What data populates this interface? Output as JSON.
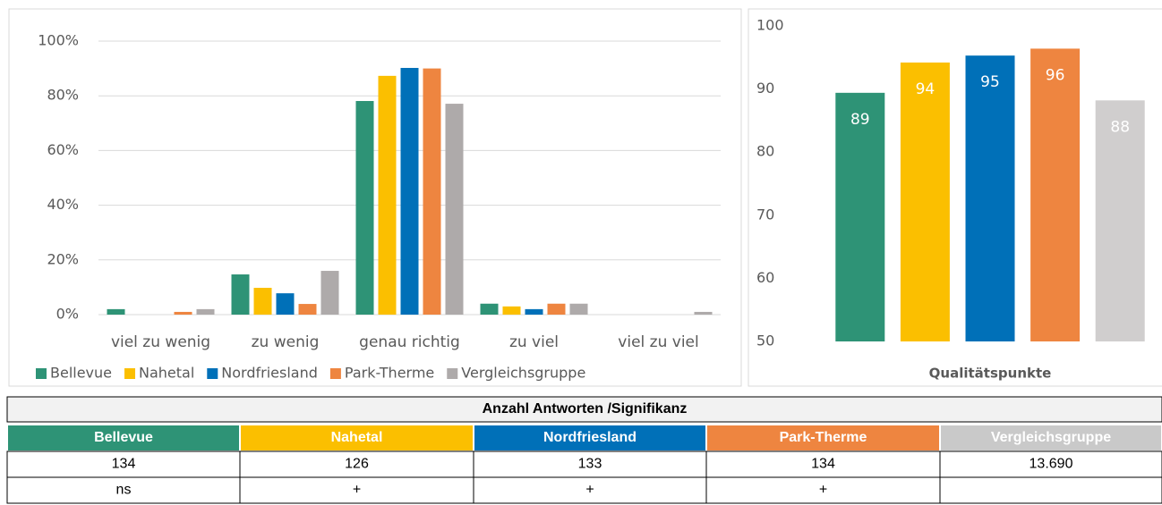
{
  "chart_data": [
    {
      "type": "bar",
      "categories": [
        "viel zu wenig",
        "zu wenig",
        "genau richtig",
        "zu viel",
        "viel zu viel"
      ],
      "series": [
        {
          "name": "Bellevue",
          "color": "#2e9376",
          "values": [
            2,
            14.7,
            78.1,
            4,
            0
          ]
        },
        {
          "name": "Nahetal",
          "color": "#fbbf00",
          "values": [
            0,
            9.8,
            87.3,
            3,
            0
          ]
        },
        {
          "name": "Nordfriesland",
          "color": "#0070b8",
          "values": [
            0,
            7.8,
            90.2,
            2,
            0
          ]
        },
        {
          "name": "Park-Therme",
          "color": "#ee8540",
          "values": [
            1,
            3.9,
            90,
            4,
            0
          ]
        },
        {
          "name": "Vergleichsgruppe",
          "color": "#aeaaaa",
          "values": [
            2,
            16,
            77.1,
            4,
            1
          ]
        }
      ],
      "ylim": [
        0,
        100
      ],
      "yticks": [
        {
          "value": 0,
          "label": "0%"
        },
        {
          "value": 20,
          "label": "20%"
        },
        {
          "value": 40,
          "label": "40%"
        },
        {
          "value": 60,
          "label": "60%"
        },
        {
          "value": 80,
          "label": "80%"
        },
        {
          "value": 100,
          "label": "100%"
        }
      ],
      "grid": true,
      "legend": "bottom"
    },
    {
      "type": "bar",
      "categories": [
        "Qualitätspunkte"
      ],
      "series": [
        {
          "color": "#2e9376",
          "values": [
            89.4
          ],
          "value_labels": [
            "89"
          ]
        },
        {
          "color": "#fbbf00",
          "values": [
            94.2
          ],
          "value_labels": [
            "94"
          ]
        },
        {
          "color": "#0070b8",
          "values": [
            95.3
          ],
          "value_labels": [
            "95"
          ]
        },
        {
          "color": "#ee8540",
          "values": [
            96.4
          ],
          "value_labels": [
            "96"
          ]
        },
        {
          "color": "#d0cece",
          "values": [
            88.2
          ],
          "value_labels": [
            "88"
          ]
        }
      ],
      "ylim": [
        50,
        100
      ],
      "yticks": [
        50,
        60,
        70,
        80,
        90,
        100
      ],
      "grid": false
    }
  ],
  "table": {
    "title": "Anzahl Antworten /Signifikanz",
    "header": [
      "Bellevue",
      "Nahetal",
      "Nordfriesland",
      "Park-Therme",
      "Vergleichsgruppe"
    ],
    "header_colors": [
      "#2e9376",
      "#fbbf00",
      "#0070b8",
      "#ee8540",
      "#c9c9c9"
    ],
    "rows": [
      [
        "134",
        "126",
        "133",
        "134",
        "13.690"
      ],
      [
        "ns",
        "+",
        "+",
        "+"
      ]
    ]
  }
}
